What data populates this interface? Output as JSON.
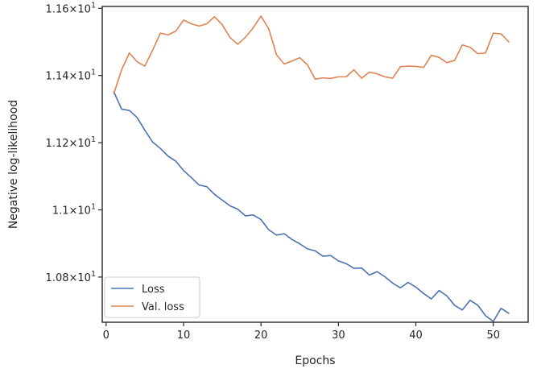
{
  "chart_data": {
    "type": "line",
    "xlabel": "Epochs",
    "ylabel": "Negative log-likelihood",
    "xlim": [
      -0.5,
      54.5
    ],
    "ylim": [
      10.6655,
      11.6055
    ],
    "x_ticks": [
      0,
      10,
      20,
      30,
      40,
      50
    ],
    "x_tick_labels": [
      "0",
      "10",
      "20",
      "30",
      "40",
      "50"
    ],
    "y_ticks": [
      10.8,
      11.0,
      11.2,
      11.4,
      11.6
    ],
    "y_tick_labels": [
      {
        "mantissa": "1.08",
        "times": "×",
        "base": "10",
        "exp": "1"
      },
      {
        "mantissa": "1.1",
        "times": "×",
        "base": "10",
        "exp": "1"
      },
      {
        "mantissa": "1.12",
        "times": "×",
        "base": "10",
        "exp": "1"
      },
      {
        "mantissa": "1.14",
        "times": "×",
        "base": "10",
        "exp": "1"
      },
      {
        "mantissa": "1.16",
        "times": "×",
        "base": "10",
        "exp": "1"
      }
    ],
    "grid": false,
    "legend_position": "lower-left",
    "x": [
      1,
      2,
      3,
      4,
      5,
      6,
      7,
      8,
      9,
      10,
      11,
      12,
      13,
      14,
      15,
      16,
      17,
      18,
      19,
      20,
      21,
      22,
      23,
      24,
      25,
      26,
      27,
      28,
      29,
      30,
      31,
      32,
      33,
      34,
      35,
      36,
      37,
      38,
      39,
      40,
      41,
      42,
      43,
      44,
      45,
      46,
      47,
      48,
      49,
      50,
      51,
      52
    ],
    "series": [
      {
        "name": "Loss",
        "color": "#4c72b0",
        "values": [
          11.351,
          11.3,
          11.296,
          11.275,
          11.237,
          11.202,
          11.183,
          11.16,
          11.145,
          11.117,
          11.096,
          11.074,
          11.069,
          11.046,
          11.029,
          11.012,
          11.002,
          10.982,
          10.985,
          10.971,
          10.941,
          10.925,
          10.929,
          10.912,
          10.899,
          10.884,
          10.878,
          10.862,
          10.864,
          10.848,
          10.84,
          10.826,
          10.827,
          10.806,
          10.816,
          10.801,
          10.782,
          10.768,
          10.784,
          10.77,
          10.751,
          10.735,
          10.76,
          10.744,
          10.716,
          10.702,
          10.731,
          10.716,
          10.685,
          10.668,
          10.707,
          10.692
        ]
      },
      {
        "name": "Val. loss",
        "color": "#dd8452",
        "values": [
          11.346,
          11.417,
          11.467,
          11.441,
          11.428,
          11.475,
          11.526,
          11.521,
          11.532,
          11.565,
          11.554,
          11.547,
          11.554,
          11.575,
          11.551,
          11.513,
          11.493,
          11.514,
          11.542,
          11.577,
          11.539,
          11.462,
          11.434,
          11.443,
          11.453,
          11.432,
          11.389,
          11.393,
          11.391,
          11.396,
          11.396,
          11.417,
          11.392,
          11.41,
          11.405,
          11.396,
          11.392,
          11.426,
          11.428,
          11.427,
          11.424,
          11.46,
          11.454,
          11.438,
          11.445,
          11.491,
          11.484,
          11.465,
          11.467,
          11.526,
          11.524,
          11.5
        ]
      }
    ]
  }
}
